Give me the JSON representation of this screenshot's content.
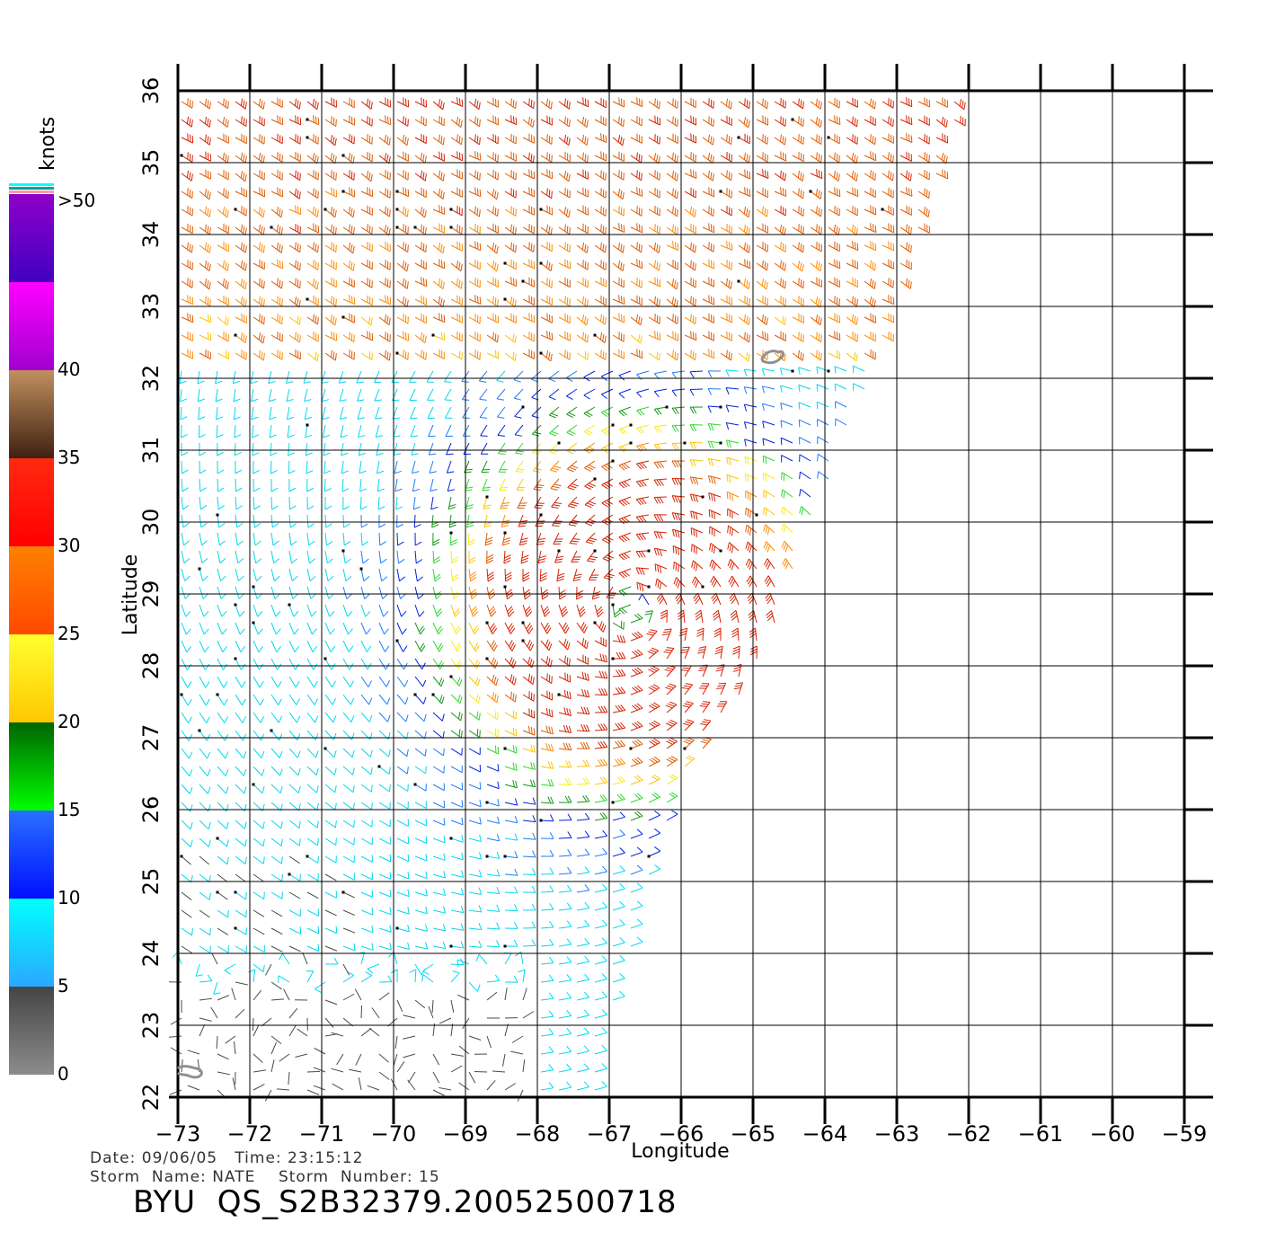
{
  "legend": {
    "unit_label": "knots",
    "bins": [
      {
        "label": "0",
        "top": "#454545",
        "bottom": "#8c8c8c"
      },
      {
        "label": "5",
        "top": "#00ffff",
        "bottom": "#2aa8ff"
      },
      {
        "label": "10",
        "top": "#2a70ff",
        "bottom": "#0010ff"
      },
      {
        "label": "15",
        "top": "#006400",
        "bottom": "#00ff00"
      },
      {
        "label": "20",
        "top": "#ffff30",
        "bottom": "#ffc800"
      },
      {
        "label": "25",
        "top": "#ff8000",
        "bottom": "#ff4a00"
      },
      {
        "label": "30",
        "top": "#ff2a10",
        "bottom": "#ff0000"
      },
      {
        "label": "35",
        "top": "#c09060",
        "bottom": "#402010"
      },
      {
        "label": "40",
        "top": "#ff00ff",
        "bottom": "#a000d0"
      },
      {
        "label": ">50",
        "top": "#9000c8",
        "bottom": "#4000c0"
      }
    ],
    "extra_stripes": [
      "#f0a0a0",
      "#00a0a0",
      "#00ffff"
    ]
  },
  "map": {
    "lon_range": [
      -73,
      -59
    ],
    "lat_range": [
      22,
      36
    ],
    "lon_ticks": [
      -73,
      -72,
      -71,
      -70,
      -69,
      -68,
      -67,
      -66,
      -65,
      -64,
      -63,
      -62,
      -61,
      -60,
      -59
    ],
    "lat_ticks": [
      22,
      23,
      24,
      25,
      26,
      27,
      28,
      29,
      30,
      31,
      32,
      33,
      34,
      35,
      36
    ],
    "lon_tick_labels": [
      "−73",
      "−72",
      "−71",
      "−70",
      "−69",
      "−68",
      "−67",
      "−66",
      "−65",
      "−64",
      "−63",
      "−62",
      "−61",
      "−60",
      "−59"
    ],
    "lat_tick_labels": [
      "22",
      "23",
      "24",
      "25",
      "26",
      "27",
      "28",
      "29",
      "30",
      "31",
      "32",
      "33",
      "34",
      "35",
      "36"
    ],
    "x_axis_title": "Longitude",
    "y_axis_title": "Latitude",
    "storm_center": {
      "lon": -66.7,
      "lat": 28.8
    },
    "swath_edge": [
      [
        -63.0,
        33.0
      ],
      [
        -62.9,
        33.2
      ],
      [
        -65.0,
        27.8
      ],
      [
        -66.0,
        26.4
      ],
      [
        -67.0,
        23.0
      ]
    ],
    "land_outline_color": "#909090"
  },
  "footer": {
    "date_line": "Date: 09/06/05   Time: 23:15:12",
    "storm_line": "Storm  Name: NATE    Storm  Number: 15",
    "title": "BYU  QS_S2B32379.20052500718"
  }
}
